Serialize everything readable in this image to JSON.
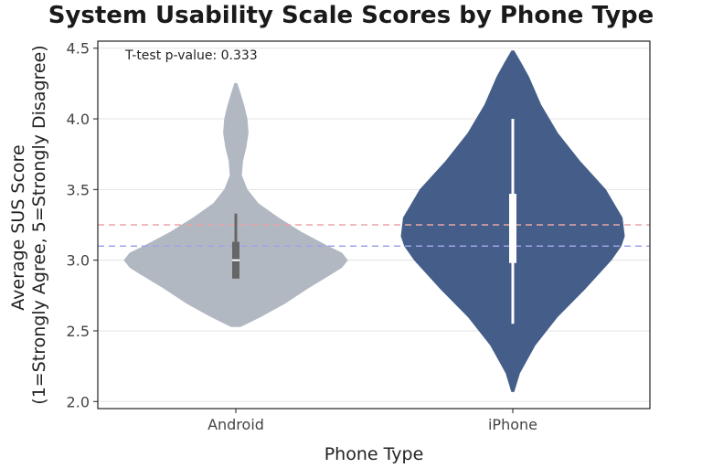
{
  "chart_data": {
    "type": "violin",
    "title": "System Usability Scale Scores by Phone Type",
    "xlabel": "Phone Type",
    "ylabel_lines": [
      "Average SUS Score",
      "(1=Strongly Agree, 5=Strongly Disagree)"
    ],
    "ylim": [
      1.95,
      4.55
    ],
    "yticks": [
      "2.0",
      "2.5",
      "3.0",
      "3.5",
      "4.0",
      "4.5"
    ],
    "grid": "horizontal",
    "annotation": "T-test p-value: 0.333",
    "reference_lines": [
      {
        "y": 3.25,
        "color": "#e8a5a8"
      },
      {
        "y": 3.1,
        "color": "#9fa3e6"
      }
    ],
    "categories": [
      "Android",
      "iPhone"
    ],
    "violins": [
      {
        "category": "Android",
        "color": "#b1b8c2",
        "box_color": "#666666",
        "median_color": "#ffffff",
        "whisker": [
          2.87,
          3.33
        ],
        "q1": 2.87,
        "median": 3.0,
        "q3": 3.13,
        "profile": [
          [
            2.53,
            0.04
          ],
          [
            2.6,
            0.22
          ],
          [
            2.7,
            0.45
          ],
          [
            2.8,
            0.64
          ],
          [
            2.9,
            0.85
          ],
          [
            2.95,
            0.95
          ],
          [
            3.0,
            1.0
          ],
          [
            3.05,
            0.95
          ],
          [
            3.1,
            0.82
          ],
          [
            3.2,
            0.58
          ],
          [
            3.3,
            0.38
          ],
          [
            3.4,
            0.2
          ],
          [
            3.5,
            0.1
          ],
          [
            3.6,
            0.05
          ],
          [
            3.7,
            0.06
          ],
          [
            3.8,
            0.09
          ],
          [
            3.9,
            0.11
          ],
          [
            4.0,
            0.1
          ],
          [
            4.1,
            0.07
          ],
          [
            4.2,
            0.03
          ],
          [
            4.25,
            0.01
          ]
        ]
      },
      {
        "category": "iPhone",
        "color": "#445e89",
        "box_color": "#ffffff",
        "median_color": "#ffffff",
        "whisker": [
          2.55,
          4.0
        ],
        "q1": 2.98,
        "median": 3.25,
        "q3": 3.47,
        "profile": [
          [
            2.07,
            0.01
          ],
          [
            2.2,
            0.06
          ],
          [
            2.4,
            0.2
          ],
          [
            2.6,
            0.4
          ],
          [
            2.8,
            0.65
          ],
          [
            3.0,
            0.88
          ],
          [
            3.1,
            0.97
          ],
          [
            3.17,
            1.0
          ],
          [
            3.3,
            0.98
          ],
          [
            3.5,
            0.83
          ],
          [
            3.7,
            0.6
          ],
          [
            3.9,
            0.4
          ],
          [
            4.1,
            0.25
          ],
          [
            4.3,
            0.14
          ],
          [
            4.4,
            0.07
          ],
          [
            4.48,
            0.01
          ]
        ]
      }
    ]
  }
}
